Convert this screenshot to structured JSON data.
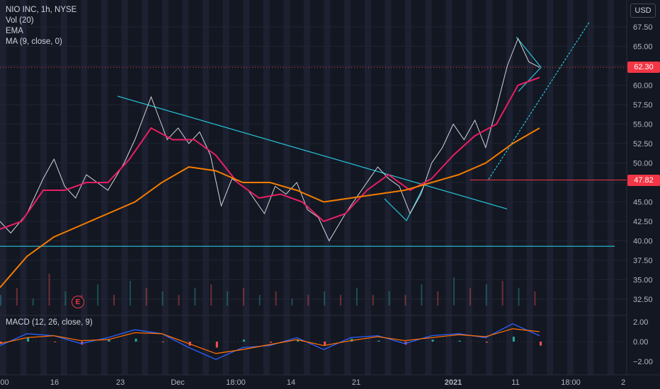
{
  "legend": {
    "symbol": "NIO INC, 1h, NYSE",
    "vol": "Vol (20)",
    "ema": "EMA",
    "ma": "MA (9, close, 0)",
    "macd": "MACD (12, 26, close, 9)"
  },
  "currency": "USD",
  "earnings_marker": "E",
  "price_tags": {
    "current": "62.30",
    "level": "47.82"
  },
  "colors": {
    "background": "#131722",
    "price_line": "#d1d4dc",
    "ma_line": "#e91e63",
    "ema_line": "#f57c00",
    "trend_lines": "#26c6da",
    "current_price": "#f23645",
    "level_line": "#f23645",
    "macd_line": "#2962ff",
    "signal_line": "#ff6d00"
  },
  "chart_data": {
    "type": "line",
    "title": "NIO INC, 1h, NYSE",
    "y_axis_ticks": [
      "67.50",
      "65.00",
      "62.50",
      "60.00",
      "57.50",
      "55.00",
      "52.50",
      "50.00",
      "47.50",
      "45.00",
      "42.50",
      "40.00",
      "37.50",
      "35.00",
      "32.50"
    ],
    "macd_axis_ticks": [
      "2.00",
      "0.00",
      "−2.00"
    ],
    "x_axis_ticks": [
      ":00",
      "16",
      "23",
      "Dec",
      "18:00",
      "14",
      "21",
      "2021",
      "11",
      "18:00",
      "2"
    ],
    "ylim": [
      31.5,
      69.5
    ],
    "current_price": 62.3,
    "horizontal_level": 47.82,
    "series": [
      {
        "name": "price",
        "x": [
          0,
          2,
          5,
          8,
          10,
          12,
          14,
          16,
          18,
          20,
          23,
          25,
          28,
          31,
          33,
          35,
          37,
          39,
          41,
          43,
          46,
          49,
          51,
          53,
          55,
          57,
          59,
          61,
          64,
          67,
          70,
          72,
          74,
          76,
          78,
          80,
          82,
          84,
          86,
          88,
          90,
          92,
          94,
          96,
          98,
          100
        ],
        "values": [
          42.5,
          41.0,
          43.5,
          48.0,
          50.5,
          47.0,
          45.5,
          48.5,
          47.5,
          46.5,
          50.0,
          53.0,
          58.5,
          53.0,
          54.5,
          52.5,
          54.0,
          51.0,
          44.5,
          48.0,
          46.5,
          43.5,
          47.0,
          46.0,
          47.5,
          44.0,
          43.0,
          40.0,
          43.5,
          46.5,
          49.5,
          48.0,
          47.0,
          43.5,
          46.0,
          50.0,
          52.0,
          55.0,
          53.0,
          55.5,
          52.0,
          57.0,
          62.5,
          66.0,
          63.0,
          62.3
        ]
      },
      {
        "name": "MA (9, close, 0)",
        "x": [
          0,
          4,
          8,
          12,
          16,
          20,
          24,
          28,
          32,
          36,
          40,
          44,
          48,
          52,
          56,
          60,
          64,
          68,
          72,
          76,
          80,
          84,
          88,
          92,
          96,
          100
        ],
        "values": [
          41.5,
          42.5,
          46.5,
          46.5,
          47.5,
          47.5,
          50.5,
          54.5,
          53.0,
          53.0,
          51.0,
          47.5,
          45.5,
          46.0,
          45.0,
          42.5,
          43.5,
          46.5,
          48.5,
          46.5,
          48.0,
          51.0,
          53.5,
          55.0,
          60.0,
          61.0
        ]
      },
      {
        "name": "EMA",
        "x": [
          0,
          5,
          10,
          15,
          20,
          25,
          30,
          35,
          40,
          45,
          50,
          55,
          60,
          65,
          70,
          75,
          80,
          85,
          90,
          95,
          100
        ],
        "values": [
          34.0,
          38.0,
          40.5,
          42.0,
          43.5,
          45.0,
          47.5,
          49.5,
          49.0,
          47.5,
          47.5,
          46.5,
          45.0,
          45.5,
          46.0,
          46.5,
          47.5,
          48.5,
          50.0,
          52.5,
          54.5
        ]
      }
    ],
    "macd": {
      "x": [
        0,
        5,
        10,
        15,
        20,
        25,
        30,
        35,
        40,
        45,
        50,
        55,
        60,
        65,
        70,
        75,
        80,
        85,
        90,
        95,
        100
      ],
      "macd": [
        -0.4,
        0.8,
        0.6,
        -0.2,
        0.4,
        1.2,
        0.8,
        -0.6,
        -1.8,
        -0.6,
        -0.4,
        0.4,
        -0.8,
        0.4,
        0.6,
        -0.2,
        0.6,
        0.8,
        0.4,
        1.8,
        0.6
      ],
      "signal": [
        -0.2,
        0.4,
        0.6,
        0.1,
        0.2,
        0.9,
        0.8,
        -0.2,
        -1.2,
        -0.8,
        -0.3,
        0.2,
        -0.4,
        0.1,
        0.5,
        0.1,
        0.4,
        0.7,
        0.5,
        1.3,
        1.0
      ]
    },
    "volume": {
      "x": [
        0,
        3,
        6,
        9,
        12,
        15,
        18,
        21,
        24,
        27,
        30,
        33,
        36,
        39,
        42,
        45,
        48,
        51,
        54,
        57,
        60,
        63,
        66,
        69,
        72,
        75,
        78,
        81,
        84,
        87,
        90,
        93,
        96,
        99
      ],
      "values": [
        0.3,
        0.5,
        0.2,
        0.9,
        0.4,
        0.3,
        0.6,
        0.3,
        0.7,
        0.5,
        0.4,
        0.3,
        0.5,
        0.6,
        0.4,
        0.5,
        0.3,
        0.4,
        0.2,
        0.3,
        0.4,
        0.3,
        0.5,
        0.3,
        0.4,
        0.3,
        0.6,
        0.4,
        0.8,
        0.5,
        0.6,
        0.7,
        0.5,
        0.4
      ]
    }
  }
}
